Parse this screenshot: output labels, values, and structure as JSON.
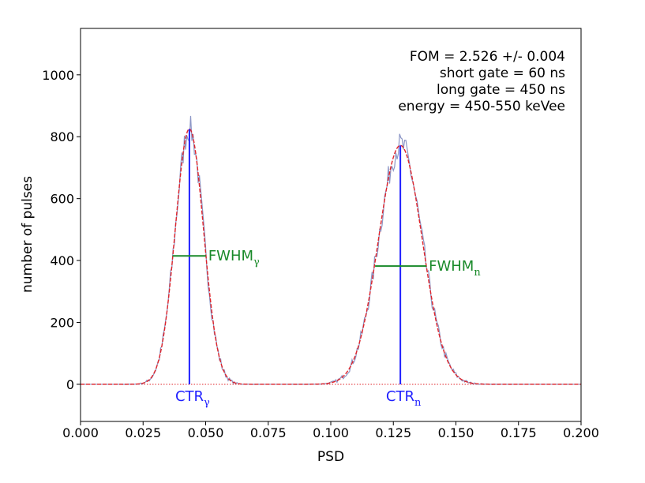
{
  "chart_data": {
    "type": "line",
    "xlabel": "PSD",
    "ylabel": "number of pulses",
    "xlim": [
      0.0,
      0.2
    ],
    "ylim": [
      -120,
      1150
    ],
    "x_ticks": [
      "0.000",
      "0.025",
      "0.050",
      "0.075",
      "0.100",
      "0.125",
      "0.150",
      "0.175",
      "0.200"
    ],
    "y_ticks": [
      "0",
      "200",
      "400",
      "600",
      "800",
      "1000"
    ],
    "info_lines": [
      "FOM = 2.526 +/- 0.004",
      "short gate = 60 ns",
      "long gate = 450 ns",
      "energy = 450-550 keVee"
    ],
    "peaks": [
      {
        "mu": 0.0435,
        "amplitude": 825,
        "sigma": 0.00565,
        "fwhm_low": 0.0368,
        "fwhm_high": 0.0501,
        "fwhm_level": 415
      },
      {
        "mu": 0.1278,
        "amplitude": 772,
        "sigma": 0.00875,
        "fwhm_low": 0.1177,
        "fwhm_high": 0.1382,
        "fwhm_level": 382
      }
    ],
    "annotations": {
      "fwhm_gamma": {
        "main": "FWHM",
        "sub": "γ"
      },
      "fwhm_n": {
        "main": "FWHM",
        "sub": "n"
      },
      "ctr_gamma": {
        "main": "CTR",
        "sub": "γ"
      },
      "ctr_n": {
        "main": "CTR",
        "sub": "n"
      }
    },
    "series": [
      {
        "style": "histogram",
        "color": "#8c96c6"
      },
      {
        "style": "gaussian-fit",
        "color": "#e0242a"
      }
    ],
    "baseline": {
      "y": 0,
      "color": "#e0242a",
      "style": "dotted"
    },
    "colors": {
      "ctr": "#1f1fff",
      "fwhm": "#1a8a2a",
      "histogram": "#8c96c6",
      "fit": "#e0242a"
    },
    "grid": false,
    "legend": "none"
  }
}
